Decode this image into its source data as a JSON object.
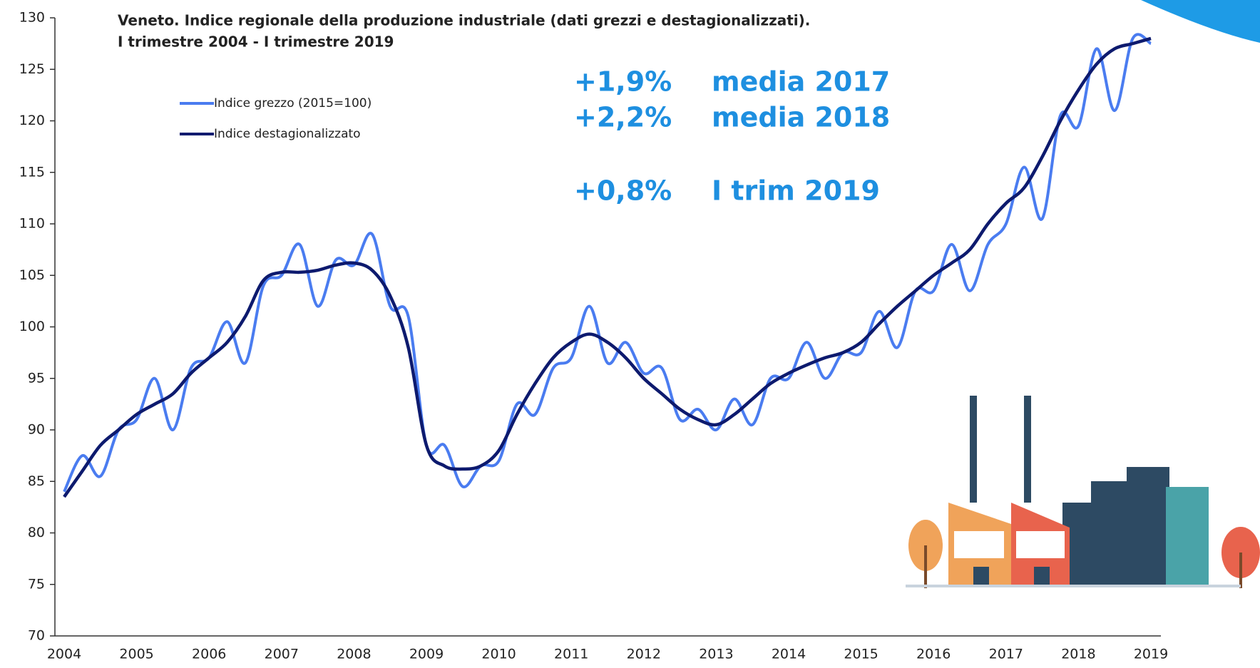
{
  "chart_data": {
    "type": "line",
    "title": "Veneto. Indice regionale della produzione industriale (dati grezzi e destagionalizzati).",
    "subtitle": "I trimestre 2004 - I trimestre 2019",
    "annotations": [
      "+1,9%",
      "media 2017",
      "+2,2%",
      "media 2018",
      "+0,8%",
      "I trim 2019"
    ],
    "categories": [
      "2004",
      null,
      null,
      null,
      "2005",
      null,
      null,
      null,
      "2006",
      null,
      null,
      null,
      "2007",
      null,
      null,
      null,
      "2008",
      null,
      null,
      null,
      "2009",
      null,
      null,
      null,
      "2010",
      null,
      null,
      null,
      "2011",
      null,
      null,
      null,
      "2012",
      null,
      null,
      null,
      "2013",
      null,
      null,
      null,
      "2014",
      null,
      null,
      null,
      "2015",
      null,
      null,
      null,
      "2016",
      null,
      null,
      null,
      "2017",
      null,
      null,
      null,
      "2018",
      null,
      null,
      null,
      "2019"
    ],
    "series": [
      {
        "name": "Indice grezzo (2015=100)",
        "color": "#4a7cf0",
        "values": [
          84,
          87.5,
          85.5,
          90,
          91,
          95,
          90,
          96,
          97,
          100.5,
          96.5,
          104,
          105,
          108,
          102,
          106.5,
          106,
          109,
          102,
          101,
          88.5,
          88.5,
          84.5,
          86.5,
          87,
          92.5,
          91.5,
          96,
          97,
          102,
          96.5,
          98.5,
          95.5,
          96,
          91,
          92,
          90,
          93,
          90.5,
          95,
          95,
          98.5,
          95,
          97.5,
          97.5,
          101.5,
          98,
          103.5,
          103.5,
          108,
          103.5,
          108,
          110,
          115.5,
          110.5,
          120.5,
          119.5,
          127,
          121,
          128,
          127.5
        ]
      },
      {
        "name": "Indice destagionalizzato",
        "color": "#0d1a6e",
        "values": [
          83.5,
          86,
          88.5,
          90,
          91.5,
          92.5,
          93.5,
          95.5,
          97,
          98.5,
          101,
          104.5,
          105.3,
          105.3,
          105.5,
          106,
          106.2,
          105.5,
          103,
          98,
          88.5,
          86.5,
          86.2,
          86.5,
          88,
          91.5,
          94.5,
          97,
          98.5,
          99.3,
          98.5,
          97,
          95,
          93.5,
          92,
          91,
          90.5,
          91.5,
          93,
          94.5,
          95.5,
          96.3,
          97,
          97.5,
          98.5,
          100.3,
          102,
          103.5,
          105,
          106.2,
          107.5,
          110,
          112,
          113.5,
          116.5,
          120,
          123,
          125.5,
          127,
          127.5,
          128
        ]
      }
    ],
    "ylim": [
      70,
      130
    ],
    "yticks": [
      70,
      75,
      80,
      85,
      90,
      95,
      100,
      105,
      110,
      115,
      120,
      125,
      130
    ]
  }
}
